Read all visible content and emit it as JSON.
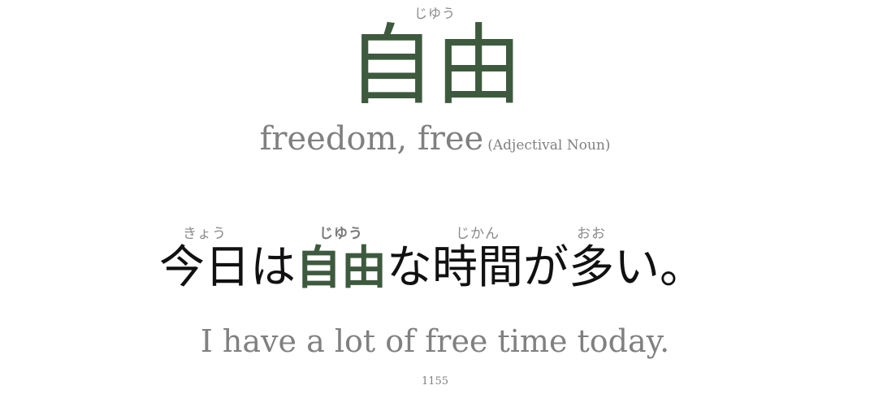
{
  "headword": {
    "reading": "じゆう",
    "kanji": "自由",
    "meaning": "freedom, free",
    "part_of_speech": "(Adjectival Noun)"
  },
  "sentence": {
    "segments": [
      {
        "reading": "きょう",
        "text": "今日",
        "highlight": false
      },
      {
        "reading": "",
        "text": "は",
        "highlight": false
      },
      {
        "reading": "じゆう",
        "text": "自由",
        "highlight": true
      },
      {
        "reading": "",
        "text": "な",
        "highlight": false
      },
      {
        "reading": "じかん",
        "text": "時間",
        "highlight": false
      },
      {
        "reading": "",
        "text": "が",
        "highlight": false
      },
      {
        "reading": "おお",
        "text": "多",
        "highlight": false
      },
      {
        "reading": "",
        "text": "い。",
        "highlight": false
      }
    ],
    "translation": "I have a lot of free time today."
  },
  "card_number": "1155",
  "colors": {
    "highlight": "#3e5a3e",
    "muted": "#808080",
    "text": "#111111",
    "background": "#ffffff"
  }
}
